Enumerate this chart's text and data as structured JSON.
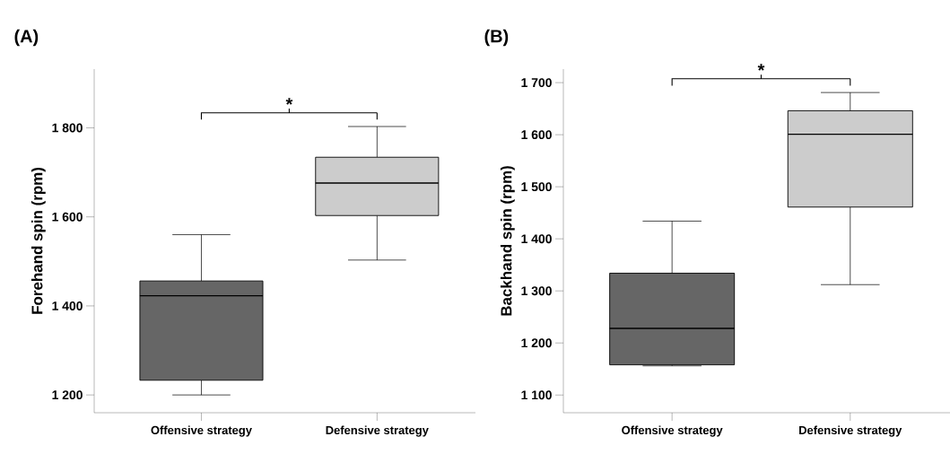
{
  "chart_data": [
    {
      "type": "box",
      "title": "(A)",
      "ylabel": "Forehand spin (rpm)",
      "categories": [
        "Offensive strategy",
        "Defensive strategy"
      ],
      "boxes": [
        {
          "low": 1200,
          "q1": 1233,
          "median": 1423,
          "q3": 1456,
          "high": 1560
        },
        {
          "low": 1503,
          "q1": 1603,
          "median": 1676,
          "q3": 1734,
          "high": 1803
        }
      ],
      "colors": [
        "#666666",
        "#cccccc"
      ],
      "ylim": [
        1160,
        1932
      ],
      "yticks": [
        {
          "value": 1200,
          "label": "1 200"
        },
        {
          "value": 1400,
          "label": "1 400"
        },
        {
          "value": 1600,
          "label": "1 600"
        },
        {
          "value": 1800,
          "label": "1 800"
        }
      ],
      "annotations": [
        "*"
      ]
    },
    {
      "type": "box",
      "title": "(B)",
      "ylabel": "Backhand spin (rpm)",
      "categories": [
        "Offensive strategy",
        "Defensive strategy"
      ],
      "boxes": [
        {
          "low": 1156,
          "q1": 1158,
          "median": 1228,
          "q3": 1334,
          "high": 1434
        },
        {
          "low": 1312,
          "q1": 1461,
          "median": 1601,
          "q3": 1646,
          "high": 1681
        }
      ],
      "colors": [
        "#666666",
        "#cccccc"
      ],
      "ylim": [
        1066,
        1726
      ],
      "yticks": [
        {
          "value": 1100,
          "label": "1 100"
        },
        {
          "value": 1200,
          "label": "1 200"
        },
        {
          "value": 1300,
          "label": "1 300"
        },
        {
          "value": 1400,
          "label": "1 400"
        },
        {
          "value": 1500,
          "label": "1 500"
        },
        {
          "value": 1600,
          "label": "1 600"
        },
        {
          "value": 1700,
          "label": "1 700"
        }
      ],
      "annotations": [
        "*"
      ]
    }
  ]
}
